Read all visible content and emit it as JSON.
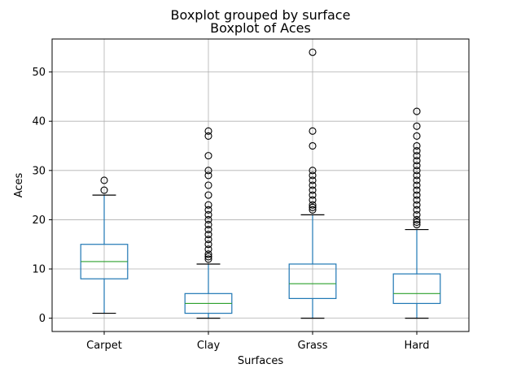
{
  "chart_data": {
    "type": "box",
    "suptitle": "Boxplot grouped by surface",
    "title": "Boxplot of Aces",
    "xlabel": "Surfaces",
    "ylabel": "Aces",
    "ylim": [
      -2.7,
      56.7
    ],
    "yticks": [
      0,
      10,
      20,
      30,
      40,
      50
    ],
    "grid": true,
    "colors": {
      "box": "#1f77b4",
      "median": "#2ca02c",
      "cap": "#000000",
      "grid": "#b0b0b0"
    },
    "categories": [
      "Carpet",
      "Clay",
      "Grass",
      "Hard"
    ],
    "boxes": [
      {
        "name": "Carpet",
        "whislo": 1,
        "q1": 8,
        "med": 11.5,
        "q3": 15,
        "whishi": 25,
        "fliers": [
          26,
          28
        ]
      },
      {
        "name": "Clay",
        "whislo": 0,
        "q1": 1,
        "med": 3,
        "q3": 5,
        "whishi": 11,
        "fliers": [
          12,
          12.5,
          13,
          14,
          15,
          16,
          17,
          18,
          19,
          20,
          21,
          22,
          23,
          25,
          27,
          29,
          30,
          33,
          37,
          38
        ]
      },
      {
        "name": "Grass",
        "whislo": 0,
        "q1": 4,
        "med": 7,
        "q3": 11,
        "whishi": 21,
        "fliers": [
          22,
          22.5,
          23,
          24,
          25,
          26,
          27,
          28,
          29,
          30,
          35,
          38,
          54
        ]
      },
      {
        "name": "Hard",
        "whislo": 0,
        "q1": 3,
        "med": 5,
        "q3": 9,
        "whishi": 18,
        "fliers": [
          19,
          19.5,
          20,
          21,
          22,
          23,
          24,
          25,
          26,
          27,
          28,
          29,
          30,
          31,
          32,
          33,
          34,
          35,
          37,
          39,
          42
        ]
      }
    ]
  }
}
